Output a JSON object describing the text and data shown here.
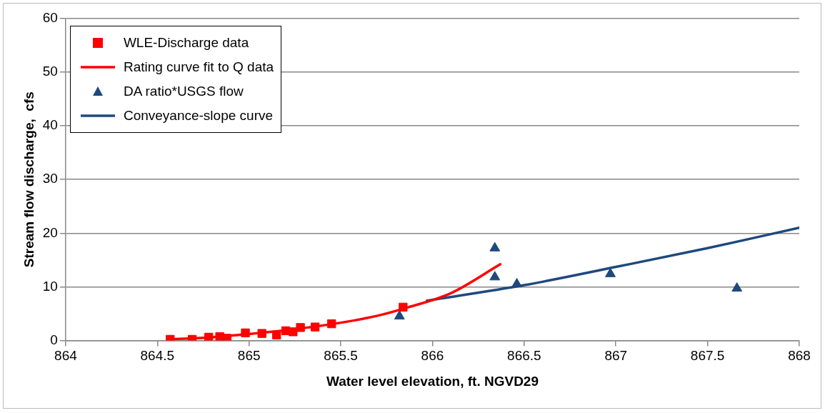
{
  "chart_data": {
    "type": "scatter",
    "xlabel": "Water level elevation, ft. NGVD29",
    "ylabel": "Stream flow discharge,  cfs",
    "xlim": [
      864,
      868
    ],
    "xticks": [
      864,
      864.5,
      865,
      865.5,
      866,
      866.5,
      867,
      867.5,
      868
    ],
    "ylim": [
      0,
      60
    ],
    "yticks": [
      0,
      10,
      20,
      30,
      40,
      50,
      60
    ],
    "grid": "y",
    "legend": "top left",
    "series": [
      {
        "name": "WLE-Discharge data",
        "type": "scatter",
        "marker": "square",
        "color": "#ff0000",
        "x": [
          864.57,
          864.69,
          864.78,
          864.84,
          864.88,
          864.98,
          865.07,
          865.15,
          865.2,
          865.24,
          865.28,
          865.36,
          865.45,
          865.84
        ],
        "values": [
          0.2,
          0.2,
          0.6,
          0.7,
          0.4,
          1.4,
          1.3,
          1.0,
          1.8,
          1.6,
          2.4,
          2.5,
          3.1,
          6.2
        ]
      },
      {
        "name": "Rating curve fit to Q data",
        "type": "line",
        "marker": "none",
        "color": "#ff0000",
        "x": [
          864.57,
          864.8,
          865,
          865.25,
          865.5,
          865.7,
          865.87,
          866.1,
          866.37
        ],
        "values": [
          0.2,
          0.6,
          1.2,
          2.1,
          3.3,
          4.6,
          6.2,
          8.8,
          14.2
        ]
      },
      {
        "name": "DA ratio*USGS flow",
        "type": "scatter",
        "marker": "triangle",
        "color": "#1f497d",
        "x": [
          865.82,
          866.34,
          866.34,
          866.46,
          866.97,
          867.66
        ],
        "values": [
          4.5,
          17.2,
          11.8,
          10.5,
          12.4,
          9.7
        ]
      },
      {
        "name": "Conveyance-slope curve",
        "type": "line",
        "marker": "none",
        "color": "#1f497d",
        "x": [
          865.97,
          866.5,
          867,
          867.5,
          868
        ],
        "values": [
          7.4,
          10.3,
          13.7,
          17.2,
          21.0
        ]
      }
    ]
  }
}
